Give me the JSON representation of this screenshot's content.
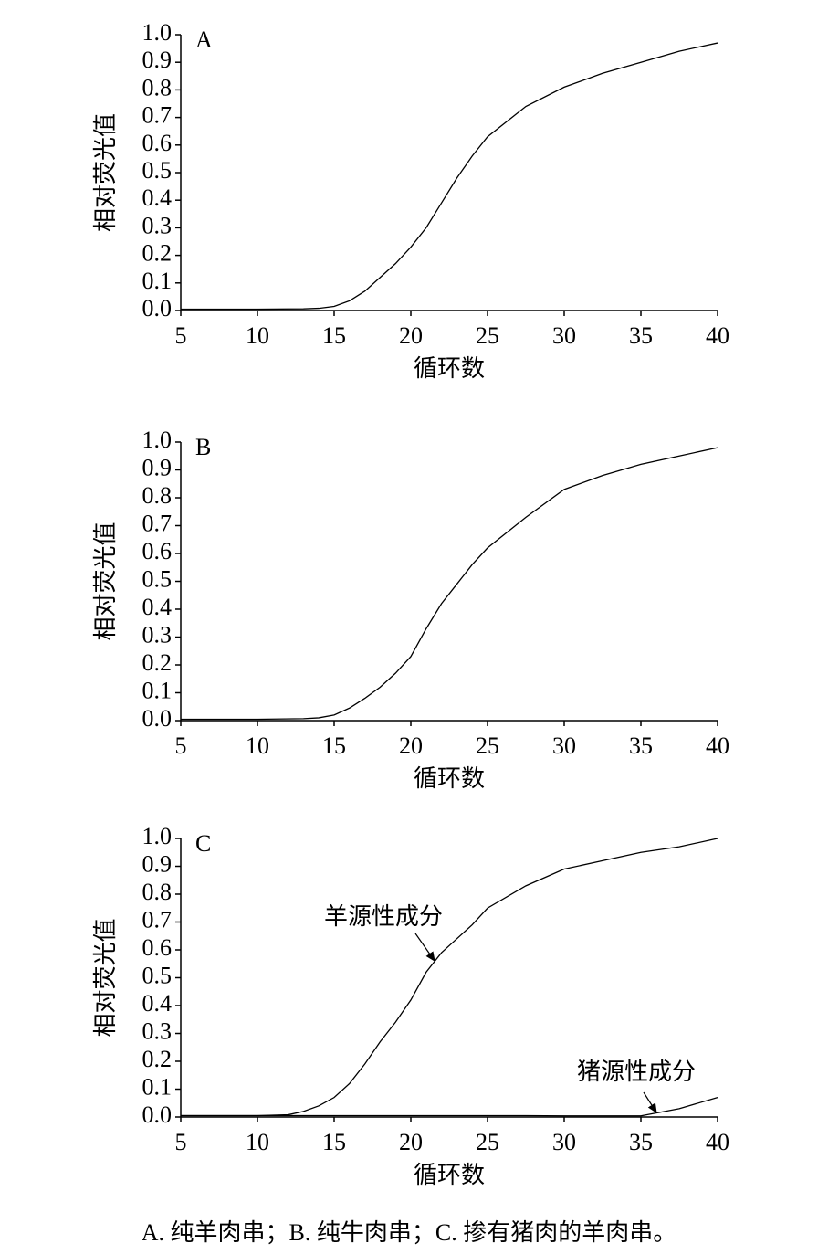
{
  "chart_data": [
    {
      "type": "line",
      "label": "A",
      "xlabel": "循环数",
      "ylabel": "相对荧光值",
      "x": [
        5,
        10,
        13,
        14,
        15,
        16,
        17,
        18,
        19,
        20,
        21,
        22,
        23,
        24,
        25,
        27.5,
        30,
        32.5,
        35,
        37.5,
        40
      ],
      "values": [
        0.005,
        0.005,
        0.006,
        0.008,
        0.015,
        0.035,
        0.07,
        0.12,
        0.17,
        0.23,
        0.3,
        0.39,
        0.48,
        0.56,
        0.63,
        0.74,
        0.81,
        0.86,
        0.9,
        0.94,
        0.97
      ],
      "color": "#000000",
      "xlim": [
        5,
        40
      ],
      "xticks": [
        5,
        10,
        15,
        20,
        25,
        30,
        35,
        40
      ],
      "ylim": [
        0,
        1
      ],
      "yticks": [
        {
          "value": 0,
          "label": "0.0"
        },
        {
          "value": 0.1,
          "label": "0.1"
        },
        {
          "value": 0.2,
          "label": "0.2"
        },
        {
          "value": 0.3,
          "label": "0.3"
        },
        {
          "value": 0.4,
          "label": "0.4"
        },
        {
          "value": 0.5,
          "label": "0.5"
        },
        {
          "value": 0.6,
          "label": "0.6"
        },
        {
          "value": 0.7,
          "label": "0.7"
        },
        {
          "value": 0.8,
          "label": "0.8"
        },
        {
          "value": 0.9,
          "label": "0.9"
        },
        {
          "value": 1,
          "label": "1.0"
        }
      ]
    },
    {
      "type": "line",
      "label": "B",
      "xlabel": "循环数",
      "ylabel": "相对荧光值",
      "x": [
        5,
        10,
        13,
        14,
        15,
        16,
        17,
        18,
        19,
        20,
        21,
        22,
        23,
        24,
        25,
        27.5,
        30,
        32.5,
        35,
        37.5,
        40
      ],
      "values": [
        0.005,
        0.005,
        0.007,
        0.01,
        0.02,
        0.045,
        0.08,
        0.12,
        0.17,
        0.23,
        0.33,
        0.42,
        0.49,
        0.56,
        0.62,
        0.73,
        0.83,
        0.88,
        0.92,
        0.95,
        0.98
      ],
      "color": "#000000",
      "xlim": [
        5,
        40
      ],
      "xticks": [
        5,
        10,
        15,
        20,
        25,
        30,
        35,
        40
      ],
      "ylim": [
        0,
        1
      ],
      "yticks": [
        {
          "value": 0,
          "label": "0.0"
        },
        {
          "value": 0.1,
          "label": "0.1"
        },
        {
          "value": 0.2,
          "label": "0.2"
        },
        {
          "value": 0.3,
          "label": "0.3"
        },
        {
          "value": 0.4,
          "label": "0.4"
        },
        {
          "value": 0.5,
          "label": "0.5"
        },
        {
          "value": 0.6,
          "label": "0.6"
        },
        {
          "value": 0.7,
          "label": "0.7"
        },
        {
          "value": 0.8,
          "label": "0.8"
        },
        {
          "value": 0.9,
          "label": "0.9"
        },
        {
          "value": 1,
          "label": "1.0"
        }
      ]
    },
    {
      "type": "line",
      "label": "C",
      "xlabel": "循环数",
      "ylabel": "相对荧光值",
      "x": [
        5,
        10,
        12,
        13,
        14,
        15,
        16,
        17,
        18,
        19,
        20,
        21,
        22,
        23,
        24,
        25,
        27.5,
        30,
        32.5,
        35,
        37.5,
        40
      ],
      "series": [
        {
          "name": "羊源性成分",
          "color": "#000000",
          "values": [
            0.005,
            0.005,
            0.008,
            0.02,
            0.04,
            0.07,
            0.12,
            0.19,
            0.27,
            0.34,
            0.42,
            0.52,
            0.59,
            0.64,
            0.69,
            0.75,
            0.83,
            0.89,
            0.92,
            0.95,
            0.97,
            1.0
          ]
        },
        {
          "name": "猪源性成分",
          "color": "#000000",
          "values": [
            0.005,
            0.005,
            0.005,
            0.005,
            0.005,
            0.005,
            0.005,
            0.005,
            0.005,
            0.005,
            0.005,
            0.005,
            0.005,
            0.005,
            0.005,
            0.005,
            0.005,
            0.004,
            0.004,
            0.004,
            0.03,
            0.07
          ]
        }
      ],
      "xlim": [
        5,
        40
      ],
      "xticks": [
        5,
        10,
        15,
        20,
        25,
        30,
        35,
        40
      ],
      "ylim": [
        0,
        1
      ],
      "yticks": [
        {
          "value": 0,
          "label": "0.0"
        },
        {
          "value": 0.1,
          "label": "0.1"
        },
        {
          "value": 0.2,
          "label": "0.2"
        },
        {
          "value": 0.3,
          "label": "0.3"
        },
        {
          "value": 0.4,
          "label": "0.4"
        },
        {
          "value": 0.5,
          "label": "0.5"
        },
        {
          "value": 0.6,
          "label": "0.6"
        },
        {
          "value": 0.7,
          "label": "0.7"
        },
        {
          "value": 0.8,
          "label": "0.8"
        },
        {
          "value": 0.9,
          "label": "0.9"
        },
        {
          "value": 1,
          "label": "1.0"
        }
      ]
    }
  ],
  "caption": "A. 纯羊肉串；B. 纯牛肉串；C. 掺有猪肉的羊肉串。"
}
